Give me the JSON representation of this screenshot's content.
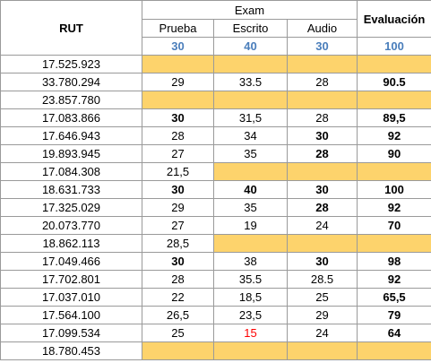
{
  "table": {
    "header": {
      "rut": "RUT",
      "exam": "Exam",
      "evaluacion": "Evaluación",
      "columns": [
        "Prueba",
        "Escrito",
        "Audio"
      ],
      "weights": [
        "30",
        "40",
        "30",
        "100"
      ]
    },
    "rows": [
      [
        "17.525.923"
      ],
      [
        "33.780.294",
        "29",
        "33.5",
        "28",
        "90.5"
      ],
      [
        "23.857.780"
      ],
      [
        "17.083.866",
        "30",
        "31,5",
        "28",
        "89,5"
      ],
      [
        "17.646.943",
        "28",
        "34",
        "30",
        "92"
      ],
      [
        "19.893.945",
        "27",
        "35",
        "28",
        "90"
      ],
      [
        "17.084.308",
        "21,5"
      ],
      [
        "18.631.733",
        "30",
        "40",
        "30",
        "100"
      ],
      [
        "17.325.029",
        "29",
        "35",
        "28",
        "92"
      ],
      [
        "20.073.770",
        "27",
        "19",
        "24",
        "70"
      ],
      [
        "18.862.113",
        "28,5"
      ],
      [
        "17.049.466",
        "30",
        "38",
        "30",
        "98"
      ],
      [
        "17.702.801",
        "28",
        "35.5",
        "28.5",
        "92"
      ],
      [
        "17.037.010",
        "22",
        "18,5",
        "25",
        "65,5"
      ],
      [
        "17.564.100",
        "26,5",
        "23,5",
        "29",
        "79"
      ],
      [
        "17.099.534",
        "25",
        "15",
        "24",
        "64"
      ],
      [
        "18.780.453"
      ]
    ]
  }
}
